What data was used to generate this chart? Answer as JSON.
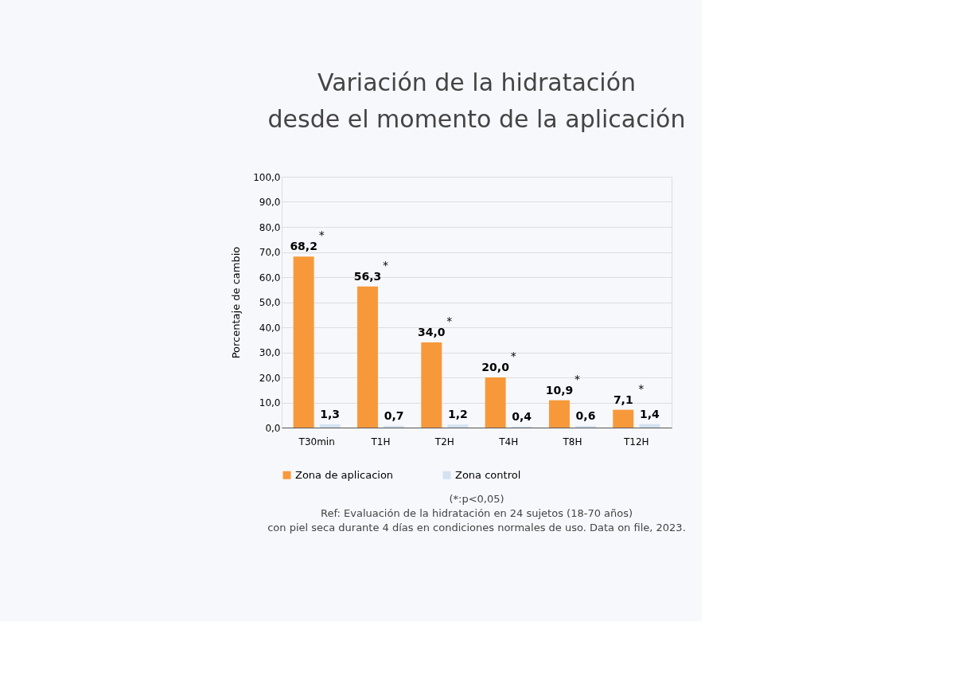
{
  "chart_data": {
    "type": "bar",
    "title": "Variación de la hidratación\ndesde el momento de la aplicación",
    "ylabel": "Porcentaje de cambio",
    "categories": [
      "T30min",
      "T1H",
      "T2H",
      "T4H",
      "T8H",
      "T12H"
    ],
    "series": [
      {
        "name": "Zona de aplicacion",
        "color": "#f7993a",
        "values": [
          68.2,
          56.3,
          34.0,
          20.0,
          10.9,
          7.1
        ],
        "value_labels": [
          "68,2",
          "56,3",
          "34,0",
          "20,0",
          "10,9",
          "7,1"
        ]
      },
      {
        "name": "Zona control",
        "color": "#d3e2f0",
        "values": [
          1.3,
          0.7,
          1.2,
          0.4,
          0.6,
          1.4
        ],
        "value_labels": [
          "1,3",
          "0,7",
          "1,2",
          "0,4",
          "0,6",
          "1,4"
        ]
      }
    ],
    "ylim": [
      0,
      100
    ],
    "yticks": [
      {
        "value": 0,
        "label": "0,0"
      },
      {
        "value": 10,
        "label": "10,0"
      },
      {
        "value": 20,
        "label": "20,0"
      },
      {
        "value": 30,
        "label": "30,0"
      },
      {
        "value": 40,
        "label": "40,0"
      },
      {
        "value": 50,
        "label": "50,0"
      },
      {
        "value": 60,
        "label": "60,0"
      },
      {
        "value": 70,
        "label": "70,0"
      },
      {
        "value": 80,
        "label": "80,0"
      },
      {
        "value": 90,
        "label": "90,0"
      },
      {
        "value": 100,
        "label": "100,0"
      }
    ],
    "grid": "y",
    "legend": "bottom",
    "annotations": [
      {
        "text": "*",
        "x": "T30min",
        "y": 68.2
      },
      {
        "text": "*",
        "x": "T1H",
        "y": 56.3
      },
      {
        "text": "*",
        "x": "T2H",
        "y": 34.0
      },
      {
        "text": "*",
        "x": "T4H",
        "y": 20.0
      },
      {
        "text": "*",
        "x": "T8H",
        "y": 10.9
      },
      {
        "text": "*",
        "x": "T12H",
        "y": 7.1
      },
      "(*:p<0,05)",
      "Ref: Evaluación de la hidratación en 24 sujetos (18-70 años)",
      "con piel seca durante 4 días en condiciones normales de uso. Data on file, 2023."
    ]
  }
}
